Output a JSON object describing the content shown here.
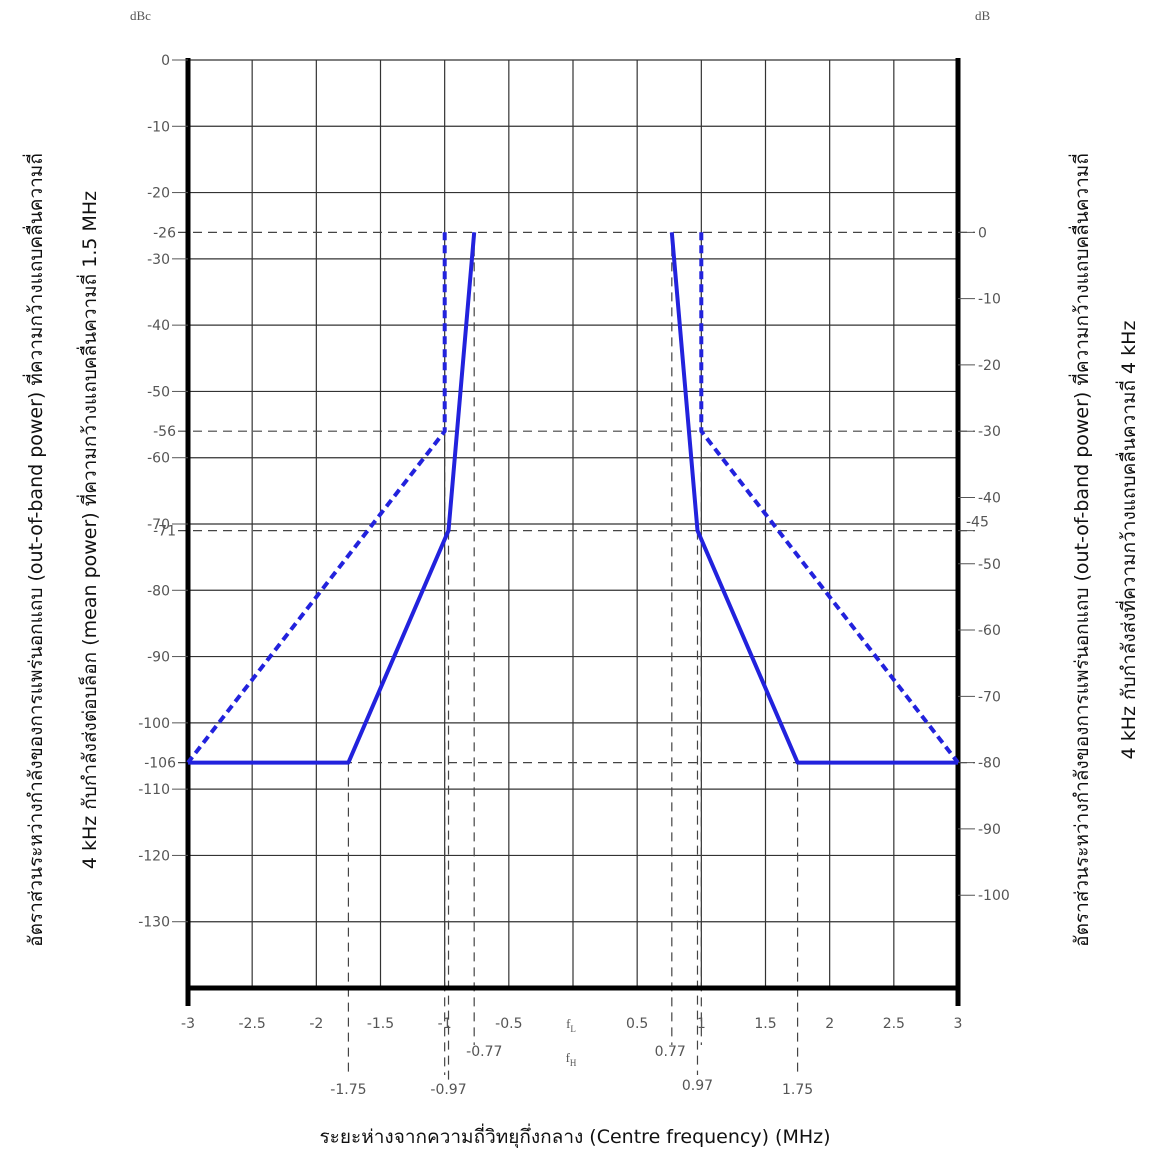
{
  "chart_data": {
    "type": "line",
    "title": "",
    "xlabel": "ระยะห่างจากความถี่วิทยุกึ่งกลาง (Centre frequency) (MHz)",
    "ylabel_left_line1": "อัตราส่วนระหว่างกำลังของการแพร่นอกแถบ (out-of-band power) ที่ความกว้างแถบคลื่นความถี่",
    "ylabel_left_line2": "4 kHz กับกำลังส่งต่อบล็อก (mean power) ที่ความกว้างแถบคลื่นความถี่ 1.5 MHz",
    "ylabel_right_line1": "อัตราส่วนระหว่างกำลังของการแพร่นอกแถบ (out-of-band power) ที่ความกว้างแถบคลื่นความถี่",
    "ylabel_right_line2": "4 kHz กับกำลังส่งที่ความกว้างแถบคลื่นความถี่ 4 kHz",
    "y_left_unit": "dBc",
    "y_right_unit": "dB",
    "xlim": [
      -3,
      3
    ],
    "ylim": [
      -140,
      0
    ],
    "grid": true,
    "x_ticks": [
      "-3",
      "-2.5",
      "-2",
      "-1.5",
      "-1",
      "-0.5",
      "0.5",
      "1",
      "1.5",
      "2",
      "2.5",
      "3"
    ],
    "x_tick_values": [
      -3,
      -2.5,
      -2,
      -1.5,
      -1,
      -0.5,
      0.5,
      1,
      1.5,
      2,
      2.5,
      3
    ],
    "x_center_labels": [
      "f",
      "L",
      "f",
      "H"
    ],
    "y_left_ticks": [
      "0",
      "-10",
      "-20",
      "-30",
      "-40",
      "-50",
      "-60",
      "-70",
      "-80",
      "-90",
      "-100",
      "-110",
      "-120",
      "-130"
    ],
    "y_left_tick_values": [
      0,
      -10,
      -20,
      -30,
      -40,
      -50,
      -60,
      -70,
      -80,
      -90,
      -100,
      -110,
      -120,
      -130
    ],
    "y_left_special_ticks": [
      "-26",
      "-56",
      "-71",
      "-106"
    ],
    "y_left_special_values": [
      -26,
      -56,
      -71,
      -106
    ],
    "y_right_ticks": [
      "0",
      "-10",
      "-20",
      "-30",
      "-40",
      "-45",
      "-50",
      "-60",
      "-70",
      "-80",
      "-90",
      "-100"
    ],
    "y_right_tick_values": [
      -26,
      -36,
      -46,
      -56,
      -66,
      -71,
      -76,
      -86,
      -96,
      -106,
      -116,
      -126
    ],
    "x_marker_labels": [
      "-1.75",
      "-0.97",
      "-0.77",
      "0.77",
      "0.97",
      "1.75"
    ],
    "x_marker_values": [
      -1.75,
      -0.97,
      -0.77,
      0.77,
      0.97,
      1.75
    ],
    "h_dashed_levels": [
      -26,
      -56,
      -71,
      -106
    ],
    "series": [
      {
        "style": "solid",
        "color": "#2222dd",
        "segments": [
          [
            [
              -3,
              -106
            ],
            [
              -1.75,
              -106
            ],
            [
              -0.97,
              -71
            ],
            [
              -0.77,
              -26
            ]
          ],
          [
            [
              0.77,
              -26
            ],
            [
              0.97,
              -71
            ],
            [
              1.75,
              -106
            ],
            [
              3,
              -106
            ]
          ]
        ]
      },
      {
        "style": "dashed",
        "color": "#2222dd",
        "segments": [
          [
            [
              -1,
              -26
            ],
            [
              -1,
              -56
            ],
            [
              -3,
              -106
            ]
          ],
          [
            [
              1,
              -26
            ],
            [
              1,
              -56
            ],
            [
              3,
              -106
            ]
          ]
        ]
      }
    ]
  }
}
